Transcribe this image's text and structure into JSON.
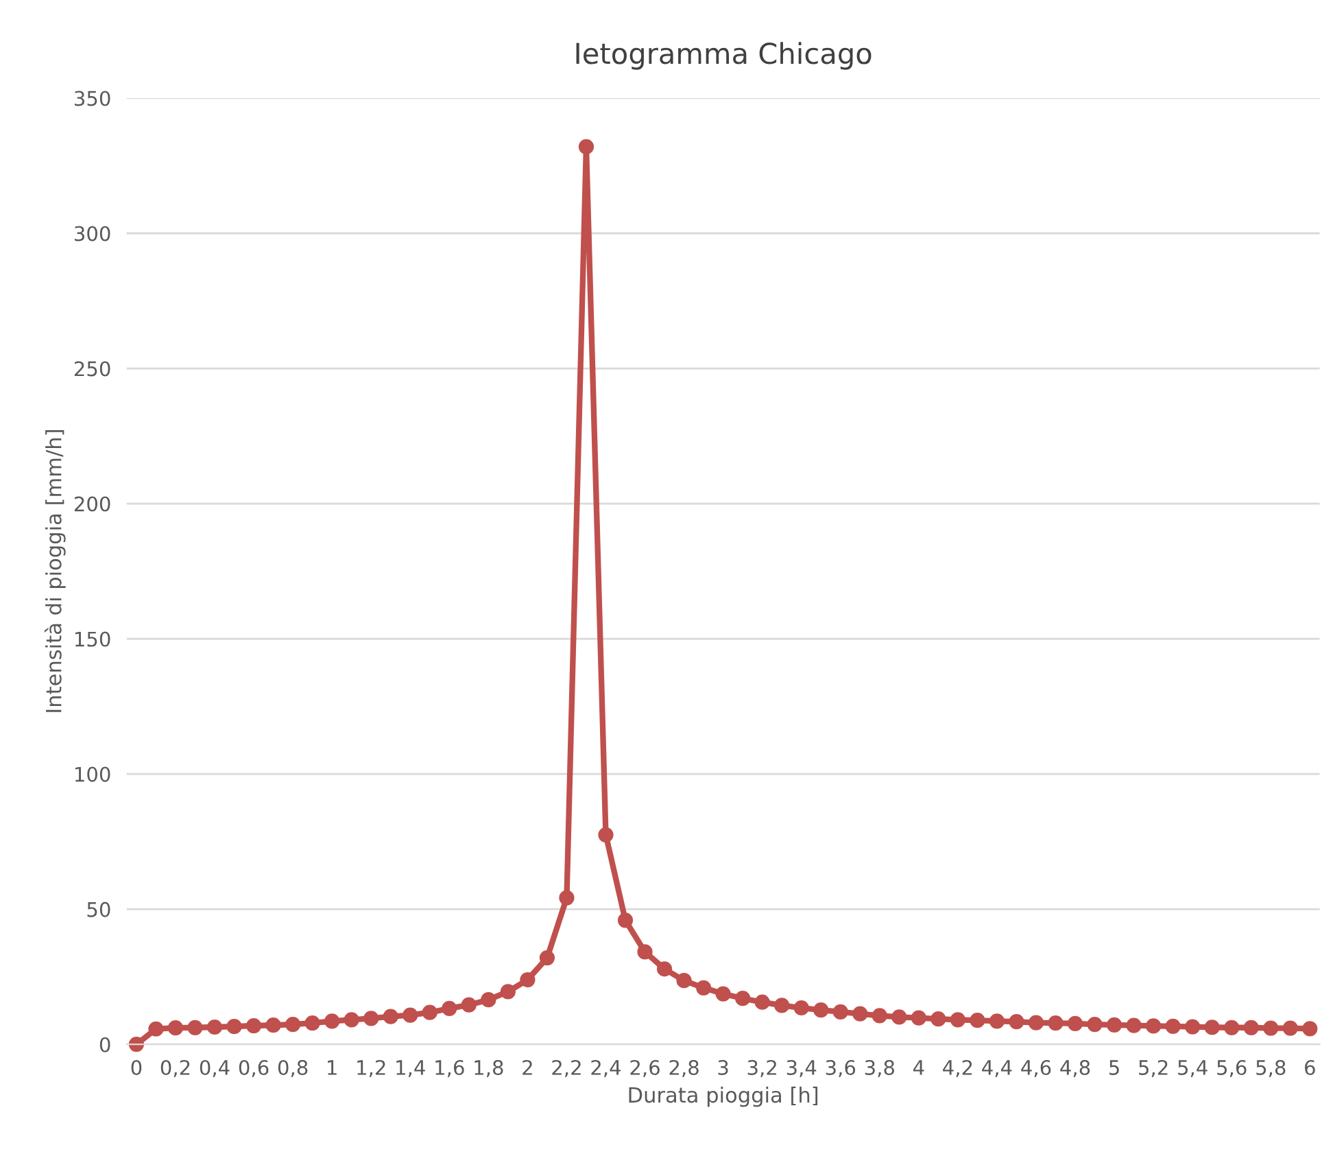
{
  "chart_data": {
    "type": "line",
    "title": "Ietogramma Chicago",
    "xlabel": "Durata pioggia [h]",
    "ylabel": "Intensità di pioggia [mm/h]",
    "categories": [
      "0",
      null,
      "0,2",
      null,
      "0,4",
      null,
      "0,6",
      null,
      "0,8",
      null,
      "1",
      null,
      "1,2",
      null,
      "1,4",
      null,
      "1,6",
      null,
      "1,8",
      null,
      "2",
      null,
      "2,2",
      null,
      "2,4",
      null,
      "2,6",
      null,
      "2,8",
      null,
      "3",
      null,
      "3,2",
      null,
      "3,4",
      null,
      "3,6",
      null,
      "3,8",
      null,
      "4",
      null,
      "4,2",
      null,
      "4,4",
      null,
      "4,6",
      null,
      "4,8",
      null,
      "5",
      null,
      "5,2",
      null,
      "5,4",
      null,
      "5,6",
      null,
      "5,8",
      null,
      "6"
    ],
    "series": [
      {
        "color": "#c0504d",
        "values": [
          0,
          5.7,
          6.1,
          6.2,
          6.4,
          6.6,
          6.9,
          7.1,
          7.4,
          7.9,
          8.6,
          9.1,
          9.6,
          10.3,
          10.8,
          11.8,
          13.3,
          14.6,
          16.5,
          19.5,
          23.9,
          32,
          54.2,
          332,
          77.5,
          45.9,
          34.2,
          27.9,
          23.6,
          20.9,
          18.7,
          17.0,
          15.6,
          14.4,
          13.5,
          12.7,
          12.0,
          11.3,
          10.6,
          10.1,
          9.8,
          9.4,
          9.1,
          8.9,
          8.6,
          8.4,
          8.0,
          7.9,
          7.7,
          7.4,
          7.2,
          7.0,
          6.8,
          6.7,
          6.5,
          6.3,
          6.2,
          6.2,
          6.0,
          6.0,
          5.8
        ]
      }
    ],
    "ylim": [
      0,
      350
    ],
    "yticks": [
      0,
      50,
      100,
      150,
      200,
      250,
      300,
      350
    ],
    "grid": "y",
    "legend": false,
    "marker": "circle",
    "line_style": "solid"
  }
}
